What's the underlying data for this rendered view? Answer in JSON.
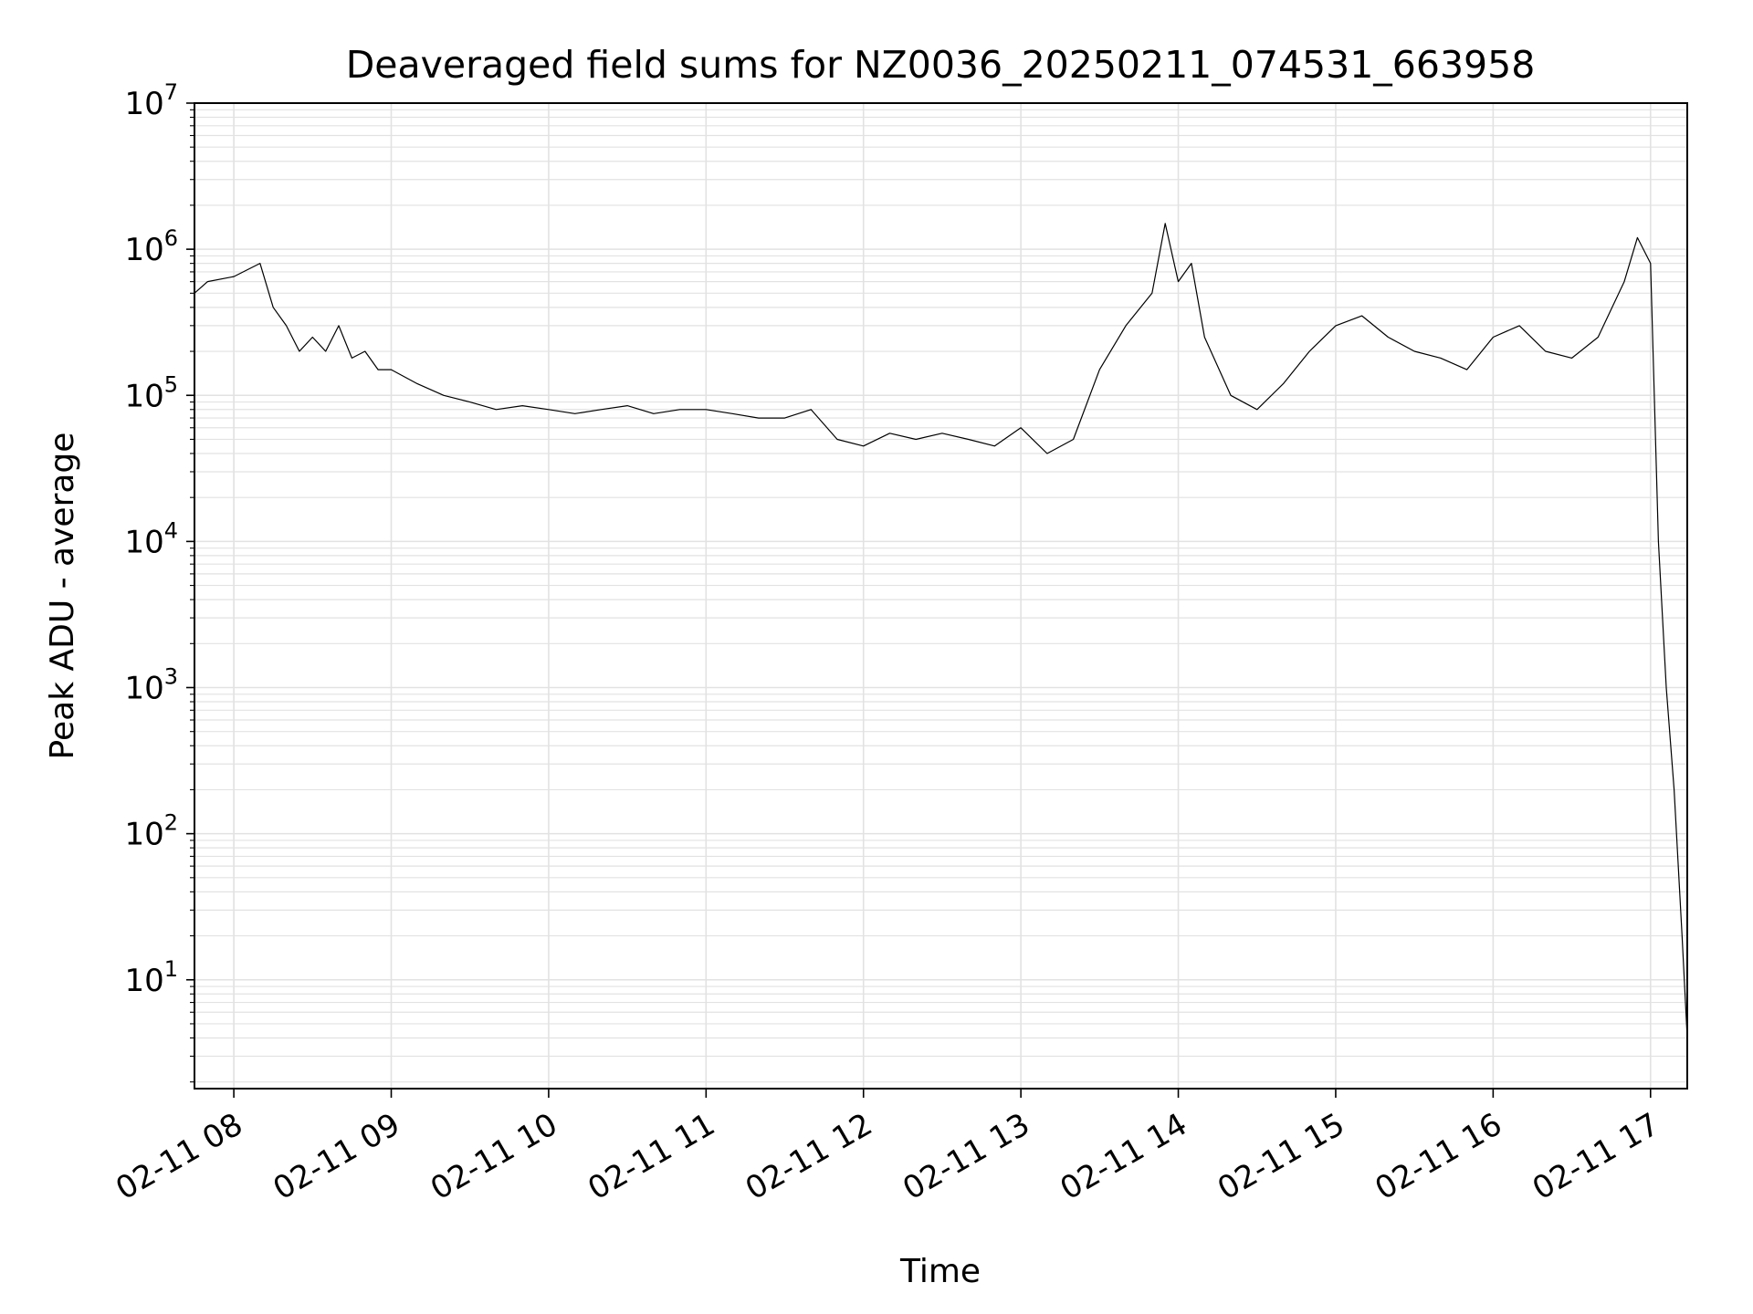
{
  "chart_data": {
    "type": "line",
    "title": "Deaveraged field sums for NZ0036_20250211_074531_663958",
    "xlabel": "Time",
    "ylabel": "Peak ADU - average",
    "yscale": "log",
    "ylim": [
      1.8,
      10000000
    ],
    "xlim": [
      "2025-02-11 07:45",
      "2025-02-11 17:14"
    ],
    "grid": true,
    "legend": "none",
    "x_ticks": [
      "02-11 08",
      "02-11 09",
      "02-11 10",
      "02-11 11",
      "02-11 12",
      "02-11 13",
      "02-11 14",
      "02-11 15",
      "02-11 16",
      "02-11 17"
    ],
    "y_ticks": [
      {
        "value": 10,
        "base": "10",
        "exp": "1"
      },
      {
        "value": 100,
        "base": "10",
        "exp": "2"
      },
      {
        "value": 1000,
        "base": "10",
        "exp": "3"
      },
      {
        "value": 10000,
        "base": "10",
        "exp": "4"
      },
      {
        "value": 100000,
        "base": "10",
        "exp": "5"
      },
      {
        "value": 1000000,
        "base": "10",
        "exp": "6"
      },
      {
        "value": 10000000,
        "base": "10",
        "exp": "7"
      }
    ],
    "line_color": "#000000",
    "grid_color": "#e2e2e2",
    "series": [
      {
        "x": [
          "2025-02-11 07:45",
          "2025-02-11 07:50",
          "2025-02-11 08:00",
          "2025-02-11 08:10",
          "2025-02-11 08:15",
          "2025-02-11 08:20",
          "2025-02-11 08:25",
          "2025-02-11 08:30",
          "2025-02-11 08:35",
          "2025-02-11 08:40",
          "2025-02-11 08:45",
          "2025-02-11 08:50",
          "2025-02-11 08:55",
          "2025-02-11 09:00",
          "2025-02-11 09:10",
          "2025-02-11 09:20",
          "2025-02-11 09:30",
          "2025-02-11 09:40",
          "2025-02-11 09:50",
          "2025-02-11 10:00",
          "2025-02-11 10:10",
          "2025-02-11 10:20",
          "2025-02-11 10:30",
          "2025-02-11 10:40",
          "2025-02-11 10:50",
          "2025-02-11 11:00",
          "2025-02-11 11:10",
          "2025-02-11 11:20",
          "2025-02-11 11:30",
          "2025-02-11 11:40",
          "2025-02-11 11:50",
          "2025-02-11 12:00",
          "2025-02-11 12:10",
          "2025-02-11 12:20",
          "2025-02-11 12:30",
          "2025-02-11 12:40",
          "2025-02-11 12:50",
          "2025-02-11 13:00",
          "2025-02-11 13:10",
          "2025-02-11 13:20",
          "2025-02-11 13:30",
          "2025-02-11 13:40",
          "2025-02-11 13:50",
          "2025-02-11 13:55",
          "2025-02-11 14:00",
          "2025-02-11 14:05",
          "2025-02-11 14:10",
          "2025-02-11 14:20",
          "2025-02-11 14:30",
          "2025-02-11 14:40",
          "2025-02-11 14:50",
          "2025-02-11 15:00",
          "2025-02-11 15:10",
          "2025-02-11 15:20",
          "2025-02-11 15:30",
          "2025-02-11 15:40",
          "2025-02-11 15:50",
          "2025-02-11 16:00",
          "2025-02-11 16:10",
          "2025-02-11 16:20",
          "2025-02-11 16:30",
          "2025-02-11 16:40",
          "2025-02-11 16:50",
          "2025-02-11 16:55",
          "2025-02-11 17:00",
          "2025-02-11 17:03",
          "2025-02-11 17:06",
          "2025-02-11 17:09",
          "2025-02-11 17:12",
          "2025-02-11 17:14"
        ],
        "y": [
          500000,
          600000,
          650000,
          800000,
          400000,
          300000,
          200000,
          250000,
          200000,
          300000,
          180000,
          200000,
          150000,
          150000,
          120000,
          100000,
          90000,
          80000,
          85000,
          80000,
          75000,
          80000,
          85000,
          75000,
          80000,
          80000,
          75000,
          70000,
          70000,
          80000,
          50000,
          45000,
          55000,
          50000,
          55000,
          50000,
          45000,
          60000,
          40000,
          50000,
          150000,
          300000,
          500000,
          1500000,
          600000,
          800000,
          250000,
          100000,
          80000,
          120000,
          200000,
          300000,
          350000,
          250000,
          200000,
          180000,
          150000,
          250000,
          300000,
          200000,
          180000,
          250000,
          600000,
          1200000,
          800000,
          10000,
          1000,
          200,
          20,
          4
        ]
      }
    ]
  }
}
